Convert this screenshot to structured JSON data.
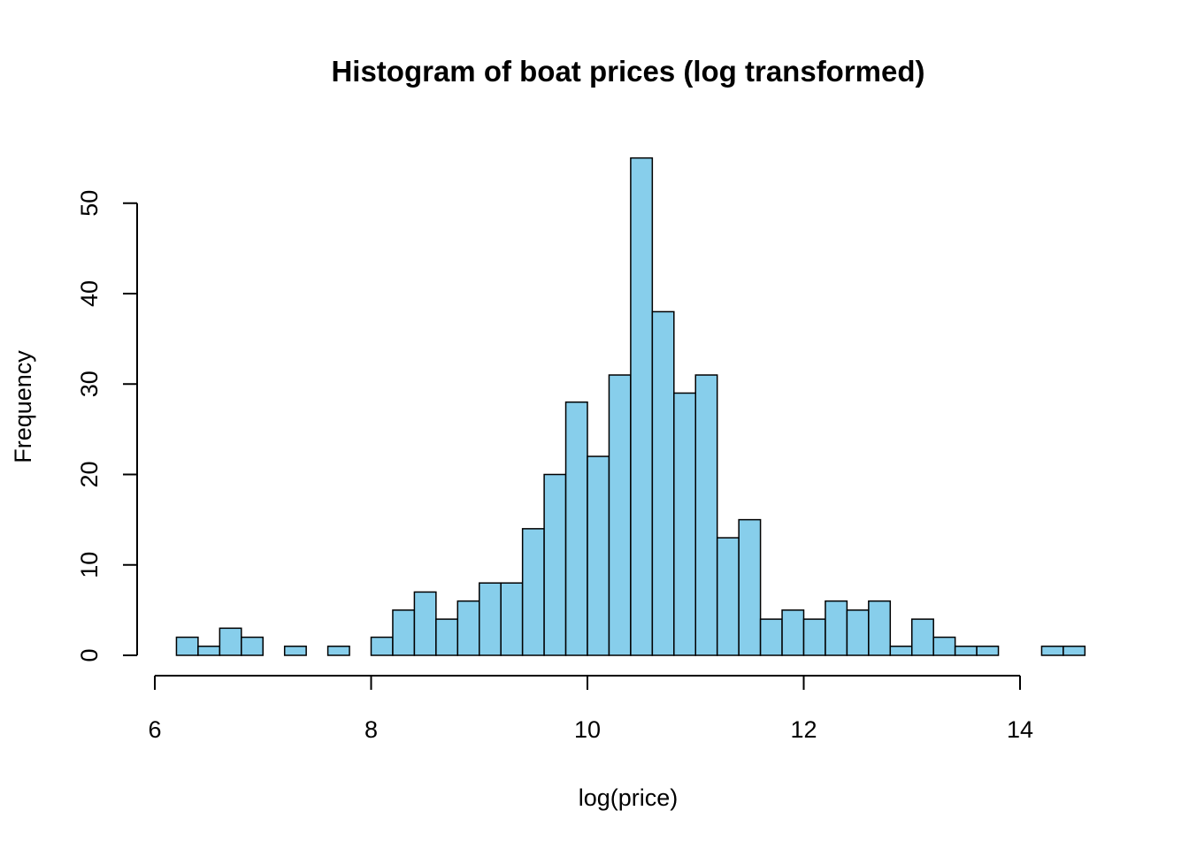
{
  "chart_data": {
    "type": "bar",
    "title": "Histogram of boat prices (log transformed)",
    "xlabel": "log(price)",
    "ylabel": "Frequency",
    "bin_width": 0.2,
    "bin_start": 6.2,
    "xlim": [
      6,
      14
    ],
    "ylim": [
      0,
      55
    ],
    "x_ticks": [
      6,
      8,
      10,
      12,
      14
    ],
    "y_ticks": [
      0,
      10,
      20,
      30,
      40,
      50
    ],
    "values": [
      2,
      1,
      3,
      2,
      0,
      1,
      0,
      1,
      0,
      2,
      5,
      7,
      4,
      6,
      8,
      8,
      14,
      20,
      28,
      22,
      31,
      55,
      38,
      29,
      31,
      13,
      15,
      4,
      5,
      4,
      6,
      5,
      6,
      1,
      4,
      2,
      1,
      1,
      0,
      0,
      1,
      1
    ],
    "bar_color": "#87CEEB",
    "grid": false
  }
}
